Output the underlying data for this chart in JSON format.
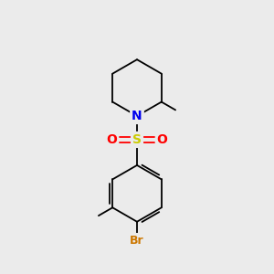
{
  "background_color": "#ebebeb",
  "atom_colors": {
    "N": "#0000ee",
    "S": "#cccc00",
    "O": "#ff0000",
    "Br": "#cc7700",
    "C": "#000000"
  },
  "bond_color": "#000000",
  "bond_width": 1.3,
  "figsize": [
    3.0,
    3.0
  ],
  "dpi": 100,
  "xlim": [
    0,
    10
  ],
  "ylim": [
    0,
    10
  ]
}
